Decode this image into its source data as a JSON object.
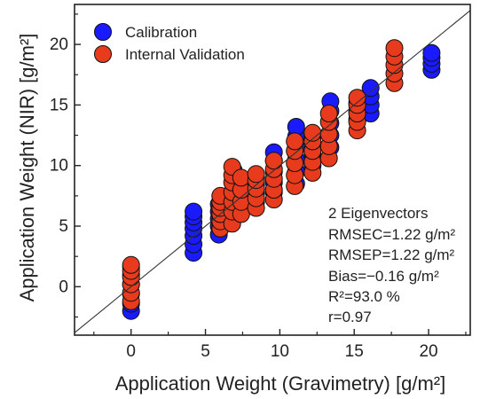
{
  "chart_data": {
    "type": "scatter",
    "xlabel": "Application Weight (Gravimetry) [g/m²]",
    "ylabel": "Application Weight (NIR) [g/m²]",
    "xlim": [
      -3.8,
      22.8
    ],
    "ylim": [
      -4.0,
      23.3
    ],
    "xticks": [
      "0",
      "5",
      "10",
      "15",
      "20"
    ],
    "yticks": [
      "0",
      "5",
      "10",
      "15",
      "20"
    ],
    "xtick_values": [
      0,
      5,
      10,
      15,
      20
    ],
    "ytick_values": [
      0,
      5,
      10,
      15,
      20
    ],
    "minor_step": 2.5,
    "reference_line": "y = x",
    "grid": false,
    "legend_position": "top-left",
    "marker_colors": {
      "Calibration": "#1a1aff",
      "Internal Validation": "#e83a1c"
    },
    "series": [
      {
        "name": "Calibration",
        "color": "#1a1aff",
        "groups": [
          {
            "x": 0.0,
            "y": [
              -2.0,
              -1.4,
              -0.6,
              0.2,
              1.0,
              1.6
            ]
          },
          {
            "x": 4.2,
            "y": [
              2.8,
              3.5,
              4.2,
              4.8,
              5.3,
              5.8,
              6.2
            ]
          },
          {
            "x": 5.9,
            "y": [
              4.3,
              5.0,
              5.6,
              6.2,
              6.8
            ]
          },
          {
            "x": 6.9,
            "y": [
              5.8,
              6.5,
              7.2,
              7.9,
              8.6,
              9.6
            ]
          },
          {
            "x": 7.4,
            "y": [
              6.3,
              7.2,
              8.0,
              8.8
            ]
          },
          {
            "x": 8.4,
            "y": [
              7.0,
              7.7,
              8.4,
              9.0
            ]
          },
          {
            "x": 9.6,
            "y": [
              7.8,
              8.6,
              9.5,
              10.4,
              11.1
            ]
          },
          {
            "x": 11.1,
            "y": [
              8.5,
              9.5,
              10.5,
              11.5,
              12.4,
              13.2
            ]
          },
          {
            "x": 12.2,
            "y": [
              10.0,
              11.0,
              11.8,
              12.4
            ]
          },
          {
            "x": 13.4,
            "y": [
              11.5,
              12.5,
              13.5,
              14.5,
              15.3
            ]
          },
          {
            "x": 15.2,
            "y": [
              13.8,
              14.5,
              15.2
            ]
          },
          {
            "x": 16.1,
            "y": [
              14.3,
              15.0,
              15.7,
              16.4
            ]
          },
          {
            "x": 20.2,
            "y": [
              17.9,
              18.4,
              18.9,
              19.3
            ]
          }
        ]
      },
      {
        "name": "Internal Validation",
        "color": "#e83a1c",
        "groups": [
          {
            "x": 0.0,
            "y": [
              -1.2,
              -0.5,
              0.2,
              0.8,
              1.3,
              1.8
            ]
          },
          {
            "x": 6.0,
            "y": [
              4.8,
              5.4,
              6.0,
              6.5,
              7.0,
              7.5
            ]
          },
          {
            "x": 6.8,
            "y": [
              5.2,
              6.2,
              7.0,
              7.8,
              8.6,
              9.2,
              9.9
            ]
          },
          {
            "x": 7.4,
            "y": [
              6.0,
              7.0,
              8.0,
              9.0
            ]
          },
          {
            "x": 8.4,
            "y": [
              6.5,
              7.3,
              8.1,
              8.8,
              9.3
            ]
          },
          {
            "x": 9.6,
            "y": [
              7.2,
              8.0,
              8.9,
              9.7,
              10.4
            ]
          },
          {
            "x": 11.0,
            "y": [
              8.3,
              9.2,
              10.2,
              11.2,
              12.0
            ]
          },
          {
            "x": 12.2,
            "y": [
              9.4,
              10.3,
              11.2,
              12.0,
              12.7
            ]
          },
          {
            "x": 13.3,
            "y": [
              10.6,
              11.6,
              12.6,
              13.6,
              14.3
            ]
          },
          {
            "x": 15.2,
            "y": [
              12.9,
              13.6,
              14.3,
              15.0,
              15.6
            ]
          },
          {
            "x": 17.7,
            "y": [
              16.8,
              17.6,
              18.3,
              19.0,
              19.7
            ]
          }
        ]
      }
    ],
    "annotation": {
      "lines": [
        "2 Eigenvectors",
        "RMSEC=1.22 g/m²",
        "RMSEP=1.22 g/m²",
        "Bias=−0.16 g/m²",
        "R²=93.0 %",
        "r=0.97"
      ]
    }
  }
}
